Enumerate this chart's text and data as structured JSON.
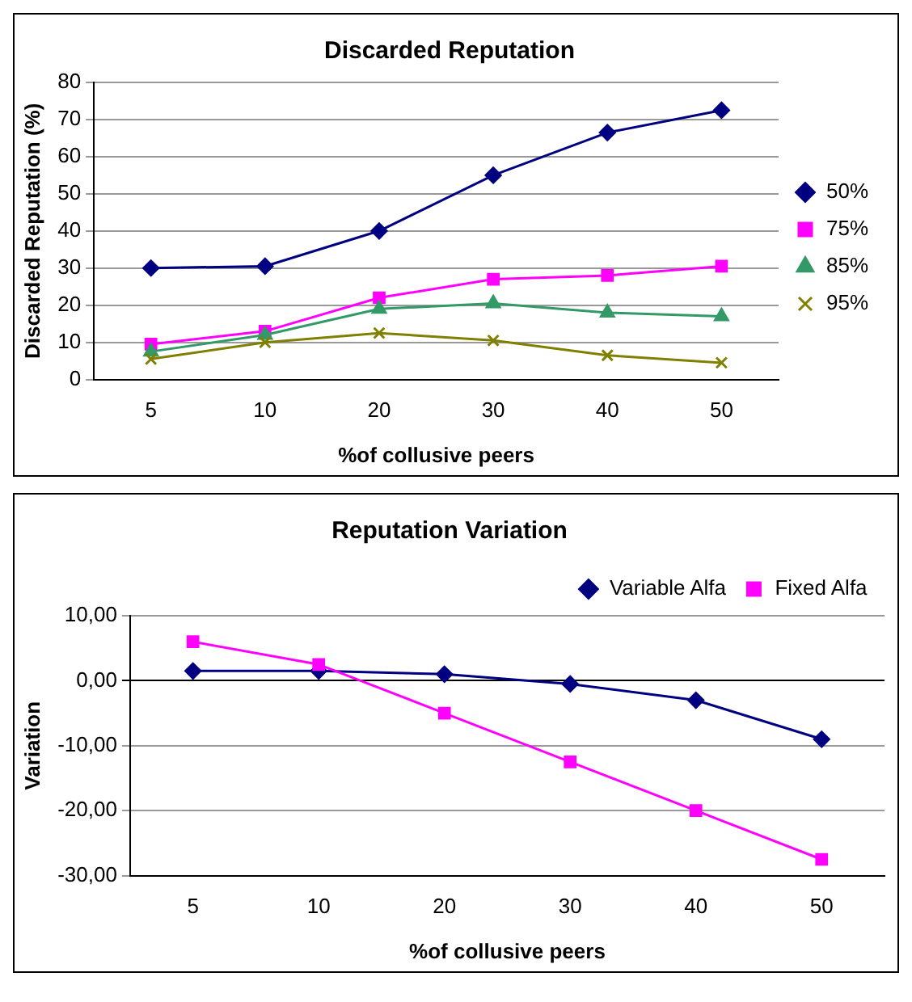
{
  "chart_data": [
    {
      "type": "line",
      "title": "Discarded Reputation",
      "xlabel": "%of collusive peers",
      "ylabel": "Discarded Reputation (%)",
      "categories": [
        "5",
        "10",
        "20",
        "30",
        "40",
        "50"
      ],
      "ylim": [
        0,
        80
      ],
      "yticks": [
        0,
        10,
        20,
        30,
        40,
        50,
        60,
        70,
        80
      ],
      "grid": "y",
      "legend": "right",
      "series": [
        {
          "name": "50%",
          "color": "#000080",
          "marker": "diamond",
          "values": [
            30,
            30.5,
            40,
            55,
            66.5,
            72.5
          ]
        },
        {
          "name": "75%",
          "color": "#ff00ff",
          "marker": "square",
          "values": [
            9.5,
            13,
            22,
            27,
            28,
            30.5
          ]
        },
        {
          "name": "85%",
          "color": "#339966",
          "marker": "triangle",
          "values": [
            7.5,
            12,
            19,
            20.5,
            18,
            17
          ]
        },
        {
          "name": "95%",
          "color": "#808000",
          "marker": "cross",
          "values": [
            5.5,
            10,
            12.5,
            10.5,
            6.5,
            4.5
          ]
        }
      ]
    },
    {
      "type": "line",
      "title": "Reputation Variation",
      "xlabel": "%of collusive peers",
      "ylabel": "Variation",
      "categories": [
        "5",
        "10",
        "20",
        "30",
        "40",
        "50"
      ],
      "ylim": [
        -30,
        10
      ],
      "yticks": [
        {
          "value": -30,
          "label": "-30,00"
        },
        {
          "value": -20,
          "label": "-20,00"
        },
        {
          "value": -10,
          "label": "-10,00"
        },
        {
          "value": 0,
          "label": "0,00"
        },
        {
          "value": 10,
          "label": "10,00"
        }
      ],
      "grid": "y",
      "legend": "top right",
      "series": [
        {
          "name": "Variable Alfa",
          "color": "#000080",
          "marker": "diamond",
          "values": [
            1.5,
            1.5,
            1,
            -0.5,
            -3,
            -9
          ]
        },
        {
          "name": "Fixed Alfa",
          "color": "#ff00ff",
          "marker": "square",
          "values": [
            6,
            2.5,
            -5,
            -12.5,
            -20,
            -27.5
          ]
        }
      ]
    }
  ]
}
